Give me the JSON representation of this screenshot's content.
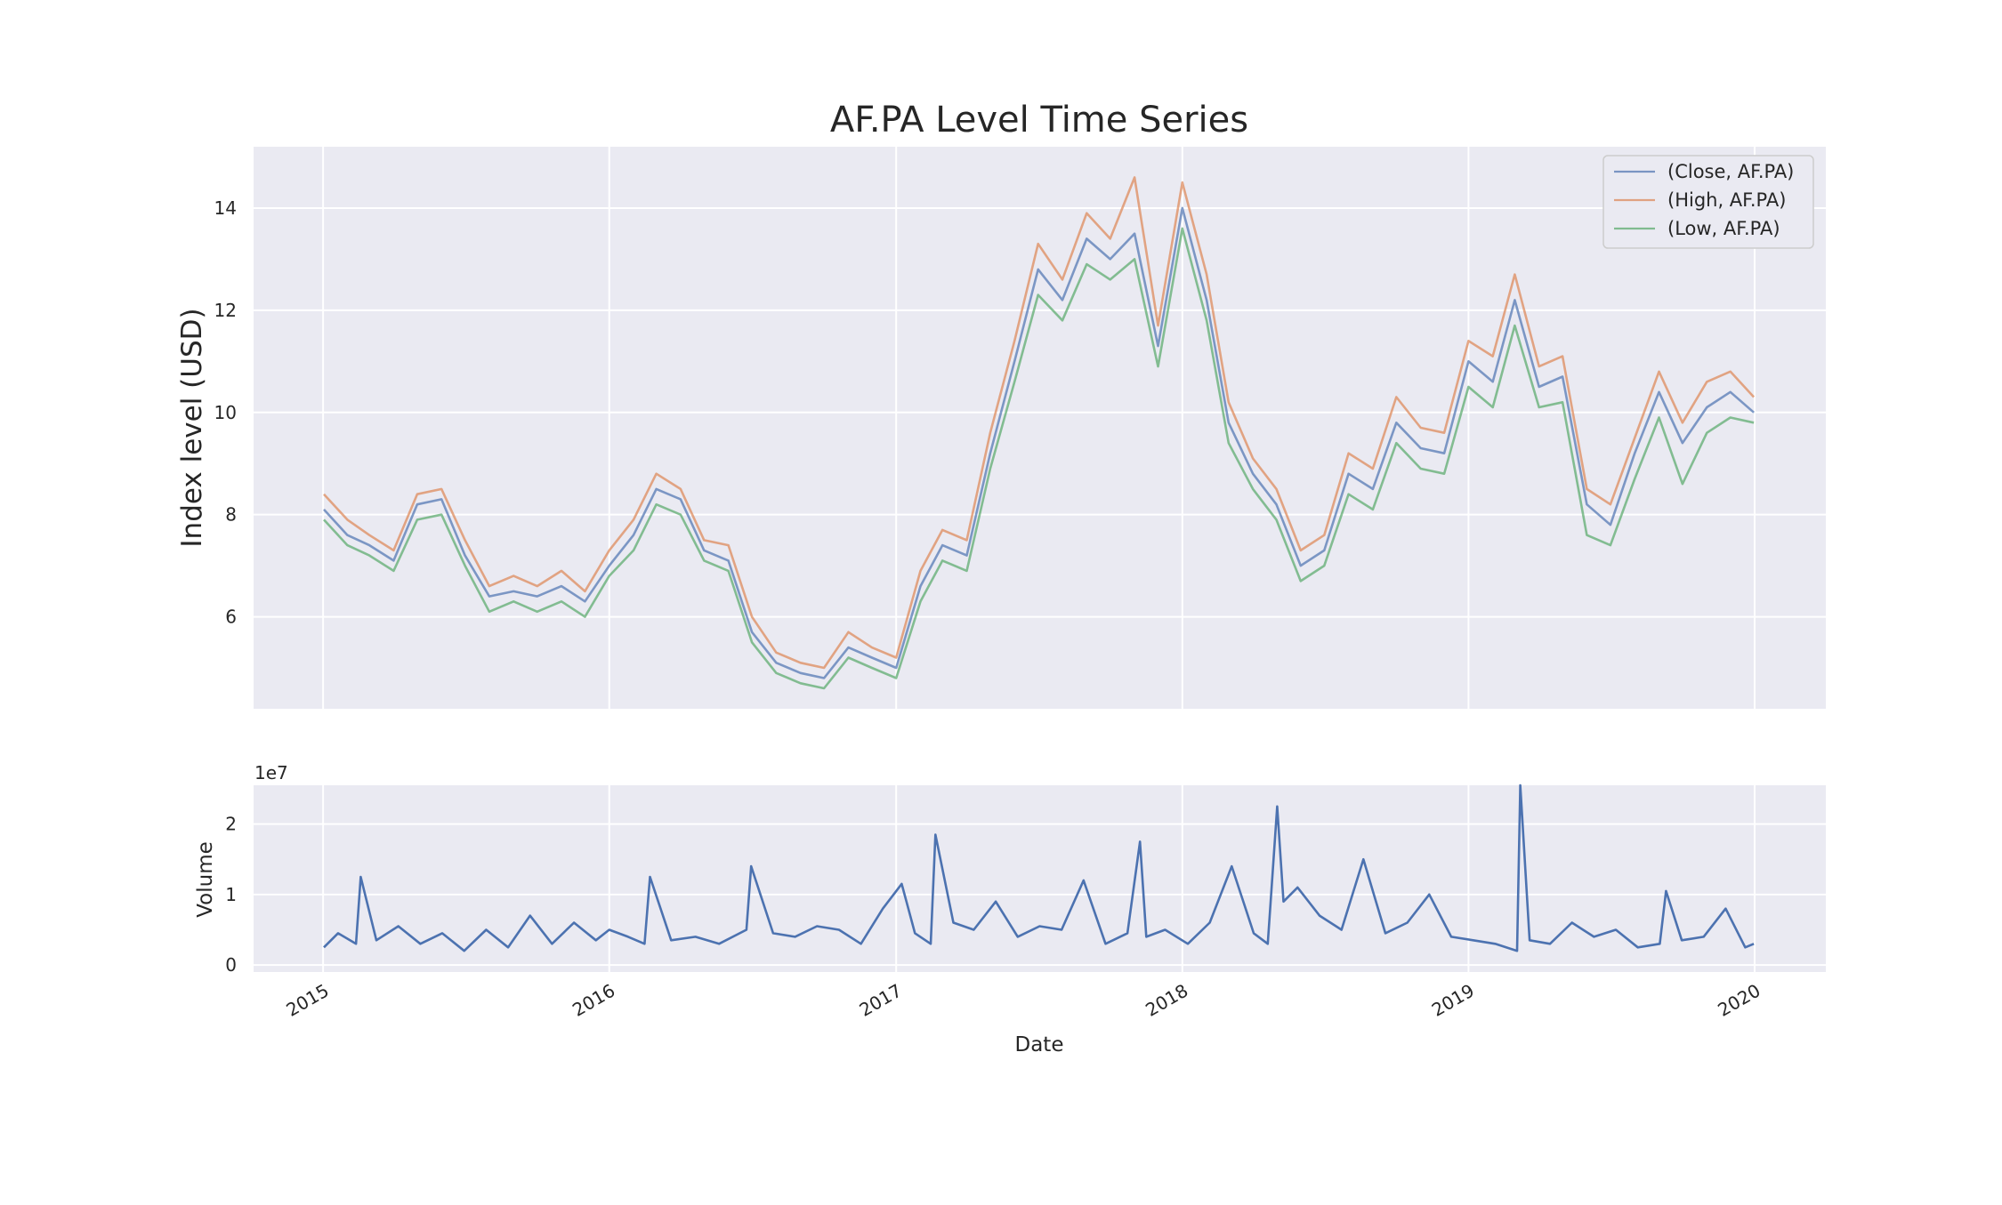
{
  "chart_data": [
    {
      "type": "line",
      "title": "AF.PA Level Time Series",
      "xlabel": "",
      "ylabel": "Index level (USD)",
      "ylim": [
        4.2,
        15.2
      ],
      "yticks": [
        "6",
        "8",
        "10",
        "12",
        "14"
      ],
      "grid": true,
      "legend_position": "top-right",
      "x": [
        "2015-01-02",
        "2015-02-01",
        "2015-03-01",
        "2015-04-01",
        "2015-05-01",
        "2015-06-01",
        "2015-07-01",
        "2015-08-01",
        "2015-09-01",
        "2015-10-01",
        "2015-11-01",
        "2015-12-01",
        "2016-01-01",
        "2016-02-01",
        "2016-03-01",
        "2016-04-01",
        "2016-05-01",
        "2016-06-01",
        "2016-07-01",
        "2016-08-01",
        "2016-09-01",
        "2016-10-01",
        "2016-11-01",
        "2016-12-01",
        "2017-01-01",
        "2017-02-01",
        "2017-03-01",
        "2017-04-01",
        "2017-05-01",
        "2017-06-01",
        "2017-07-01",
        "2017-08-01",
        "2017-09-01",
        "2017-10-01",
        "2017-11-01",
        "2017-12-01",
        "2018-01-01",
        "2018-02-01",
        "2018-03-01",
        "2018-04-01",
        "2018-05-01",
        "2018-06-01",
        "2018-07-01",
        "2018-08-01",
        "2018-09-01",
        "2018-10-01",
        "2018-11-01",
        "2018-12-01",
        "2019-01-01",
        "2019-02-01",
        "2019-03-01",
        "2019-04-01",
        "2019-05-01",
        "2019-06-01",
        "2019-07-01",
        "2019-08-01",
        "2019-09-01",
        "2019-10-01",
        "2019-11-01",
        "2019-12-01",
        "2019-12-31"
      ],
      "series": [
        {
          "name": "(Close, AF.PA)",
          "color": "#4c72b0",
          "values": [
            8.1,
            7.6,
            7.4,
            7.1,
            8.2,
            8.3,
            7.2,
            6.4,
            6.5,
            6.4,
            6.6,
            6.3,
            7.0,
            7.6,
            8.5,
            8.3,
            7.3,
            7.1,
            5.7,
            5.1,
            4.9,
            4.8,
            5.4,
            5.2,
            5.0,
            6.6,
            7.4,
            7.2,
            9.2,
            11.0,
            12.8,
            12.2,
            13.4,
            13.0,
            13.5,
            11.3,
            14.0,
            12.2,
            9.8,
            8.8,
            8.2,
            7.0,
            7.3,
            8.8,
            8.5,
            9.8,
            9.3,
            9.2,
            11.0,
            10.6,
            12.2,
            10.5,
            10.7,
            8.2,
            7.8,
            9.2,
            10.4,
            9.4,
            10.1,
            10.4,
            10.0
          ]
        },
        {
          "name": "(High, AF.PA)",
          "color": "#dd8452",
          "values": [
            8.4,
            7.9,
            7.6,
            7.3,
            8.4,
            8.5,
            7.5,
            6.6,
            6.8,
            6.6,
            6.9,
            6.5,
            7.3,
            7.9,
            8.8,
            8.5,
            7.5,
            7.4,
            6.0,
            5.3,
            5.1,
            5.0,
            5.7,
            5.4,
            5.2,
            6.9,
            7.7,
            7.5,
            9.6,
            11.4,
            13.3,
            12.6,
            13.9,
            13.4,
            14.6,
            11.7,
            14.5,
            12.7,
            10.2,
            9.1,
            8.5,
            7.3,
            7.6,
            9.2,
            8.9,
            10.3,
            9.7,
            9.6,
            11.4,
            11.1,
            12.7,
            10.9,
            11.1,
            8.5,
            8.2,
            9.5,
            10.8,
            9.8,
            10.6,
            10.8,
            10.3
          ]
        },
        {
          "name": "(Low, AF.PA)",
          "color": "#55a868",
          "values": [
            7.9,
            7.4,
            7.2,
            6.9,
            7.9,
            8.0,
            7.0,
            6.1,
            6.3,
            6.1,
            6.3,
            6.0,
            6.8,
            7.3,
            8.2,
            8.0,
            7.1,
            6.9,
            5.5,
            4.9,
            4.7,
            4.6,
            5.2,
            5.0,
            4.8,
            6.3,
            7.1,
            6.9,
            8.9,
            10.6,
            12.3,
            11.8,
            12.9,
            12.6,
            13.0,
            10.9,
            13.6,
            11.8,
            9.4,
            8.5,
            7.9,
            6.7,
            7.0,
            8.4,
            8.1,
            9.4,
            8.9,
            8.8,
            10.5,
            10.1,
            11.7,
            10.1,
            10.2,
            7.6,
            7.4,
            8.7,
            9.9,
            8.6,
            9.6,
            9.9,
            9.8
          ]
        }
      ]
    },
    {
      "type": "line",
      "title": "",
      "xlabel": "Date",
      "ylabel": "Volume",
      "offset_label": "1e7",
      "ylim": [
        -0.1,
        2.55
      ],
      "yticks": [
        "0",
        "1",
        "2"
      ],
      "xticks": [
        "2015",
        "2016",
        "2017",
        "2018",
        "2019",
        "2020"
      ],
      "grid": true,
      "x": [
        "2015-01-02",
        "2015-01-20",
        "2015-02-12",
        "2015-02-18",
        "2015-03-10",
        "2015-04-07",
        "2015-05-05",
        "2015-06-02",
        "2015-06-30",
        "2015-07-28",
        "2015-08-25",
        "2015-09-22",
        "2015-10-20",
        "2015-11-17",
        "2015-12-15",
        "2016-01-01",
        "2016-01-25",
        "2016-02-15",
        "2016-02-22",
        "2016-03-20",
        "2016-04-20",
        "2016-05-20",
        "2016-06-24",
        "2016-06-30",
        "2016-07-28",
        "2016-08-25",
        "2016-09-22",
        "2016-10-20",
        "2016-11-17",
        "2016-12-15",
        "2017-01-08",
        "2017-01-25",
        "2017-02-14",
        "2017-02-20",
        "2017-03-15",
        "2017-04-10",
        "2017-05-08",
        "2017-06-05",
        "2017-07-03",
        "2017-07-31",
        "2017-08-28",
        "2017-09-25",
        "2017-10-23",
        "2017-11-08",
        "2017-11-16",
        "2017-12-10",
        "2018-01-08",
        "2018-02-05",
        "2018-03-05",
        "2018-04-02",
        "2018-04-20",
        "2018-05-02",
        "2018-05-10",
        "2018-05-28",
        "2018-06-25",
        "2018-07-23",
        "2018-08-20",
        "2018-09-17",
        "2018-10-15",
        "2018-11-12",
        "2018-12-10",
        "2019-01-07",
        "2019-02-04",
        "2019-03-04",
        "2019-03-08",
        "2019-03-20",
        "2019-04-15",
        "2019-05-13",
        "2019-06-10",
        "2019-07-08",
        "2019-08-05",
        "2019-09-02",
        "2019-09-10",
        "2019-09-30",
        "2019-10-28",
        "2019-11-25",
        "2019-12-20",
        "2019-12-31"
      ],
      "series": [
        {
          "name": "",
          "color": "#4c72b0",
          "values": [
            0.25,
            0.45,
            0.3,
            1.25,
            0.35,
            0.55,
            0.3,
            0.45,
            0.2,
            0.5,
            0.25,
            0.7,
            0.3,
            0.6,
            0.35,
            0.5,
            0.4,
            0.3,
            1.25,
            0.35,
            0.4,
            0.3,
            0.5,
            1.4,
            0.45,
            0.4,
            0.55,
            0.5,
            0.3,
            0.8,
            1.15,
            0.45,
            0.3,
            1.85,
            0.6,
            0.5,
            0.9,
            0.4,
            0.55,
            0.5,
            1.2,
            0.3,
            0.45,
            1.75,
            0.4,
            0.5,
            0.3,
            0.6,
            1.4,
            0.45,
            0.3,
            2.25,
            0.9,
            1.1,
            0.7,
            0.5,
            1.5,
            0.45,
            0.6,
            1.0,
            0.4,
            0.35,
            0.3,
            0.2,
            2.55,
            0.35,
            0.3,
            0.6,
            0.4,
            0.5,
            0.25,
            0.3,
            1.05,
            0.35,
            0.4,
            0.8,
            0.25,
            0.3
          ]
        }
      ]
    }
  ]
}
